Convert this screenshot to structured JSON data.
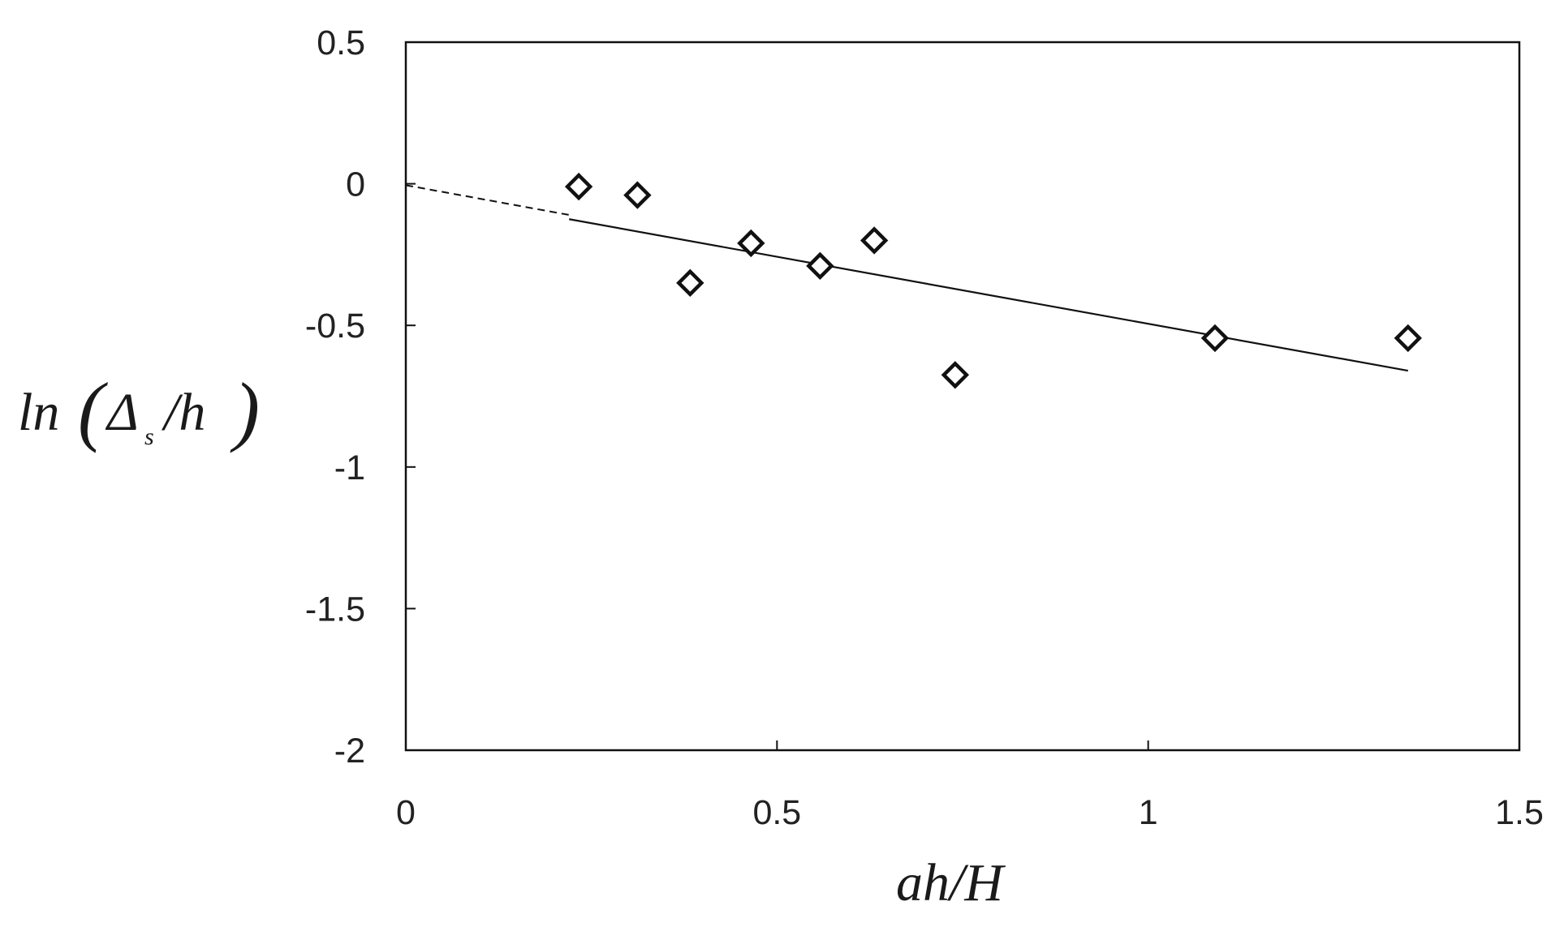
{
  "chart_data": {
    "type": "scatter",
    "xlim": [
      0,
      1.5
    ],
    "ylim": [
      -2,
      0.5
    ],
    "x_ticks": [
      "0",
      "0.5",
      "1",
      "1.5"
    ],
    "y_ticks": [
      "0.5",
      "0",
      "-0.5",
      "-1",
      "-1.5",
      "-2"
    ],
    "xlabel": "ah/H",
    "ylabel": {
      "prefix": "ln",
      "delta": "Δ",
      "subscript": "s",
      "suffix": "/h"
    },
    "grid": false,
    "legend": "none",
    "series": [
      {
        "marker": "diamond-open",
        "points": [
          {
            "x": 0.233,
            "y": -0.01
          },
          {
            "x": 0.312,
            "y": -0.04
          },
          {
            "x": 0.383,
            "y": -0.35
          },
          {
            "x": 0.465,
            "y": -0.21
          },
          {
            "x": 0.558,
            "y": -0.29
          },
          {
            "x": 0.631,
            "y": -0.2
          },
          {
            "x": 0.74,
            "y": -0.675
          },
          {
            "x": 1.09,
            "y": -0.545
          },
          {
            "x": 1.35,
            "y": -0.545
          }
        ]
      }
    ],
    "fit_line": {
      "solid_from": [
        0.22,
        -0.125
      ],
      "solid_to": [
        1.35,
        -0.66
      ],
      "dashed_from": [
        0,
        -0.005
      ],
      "dashed_to": [
        0.22,
        -0.11
      ]
    },
    "colors": {
      "ink": "#111111"
    }
  }
}
